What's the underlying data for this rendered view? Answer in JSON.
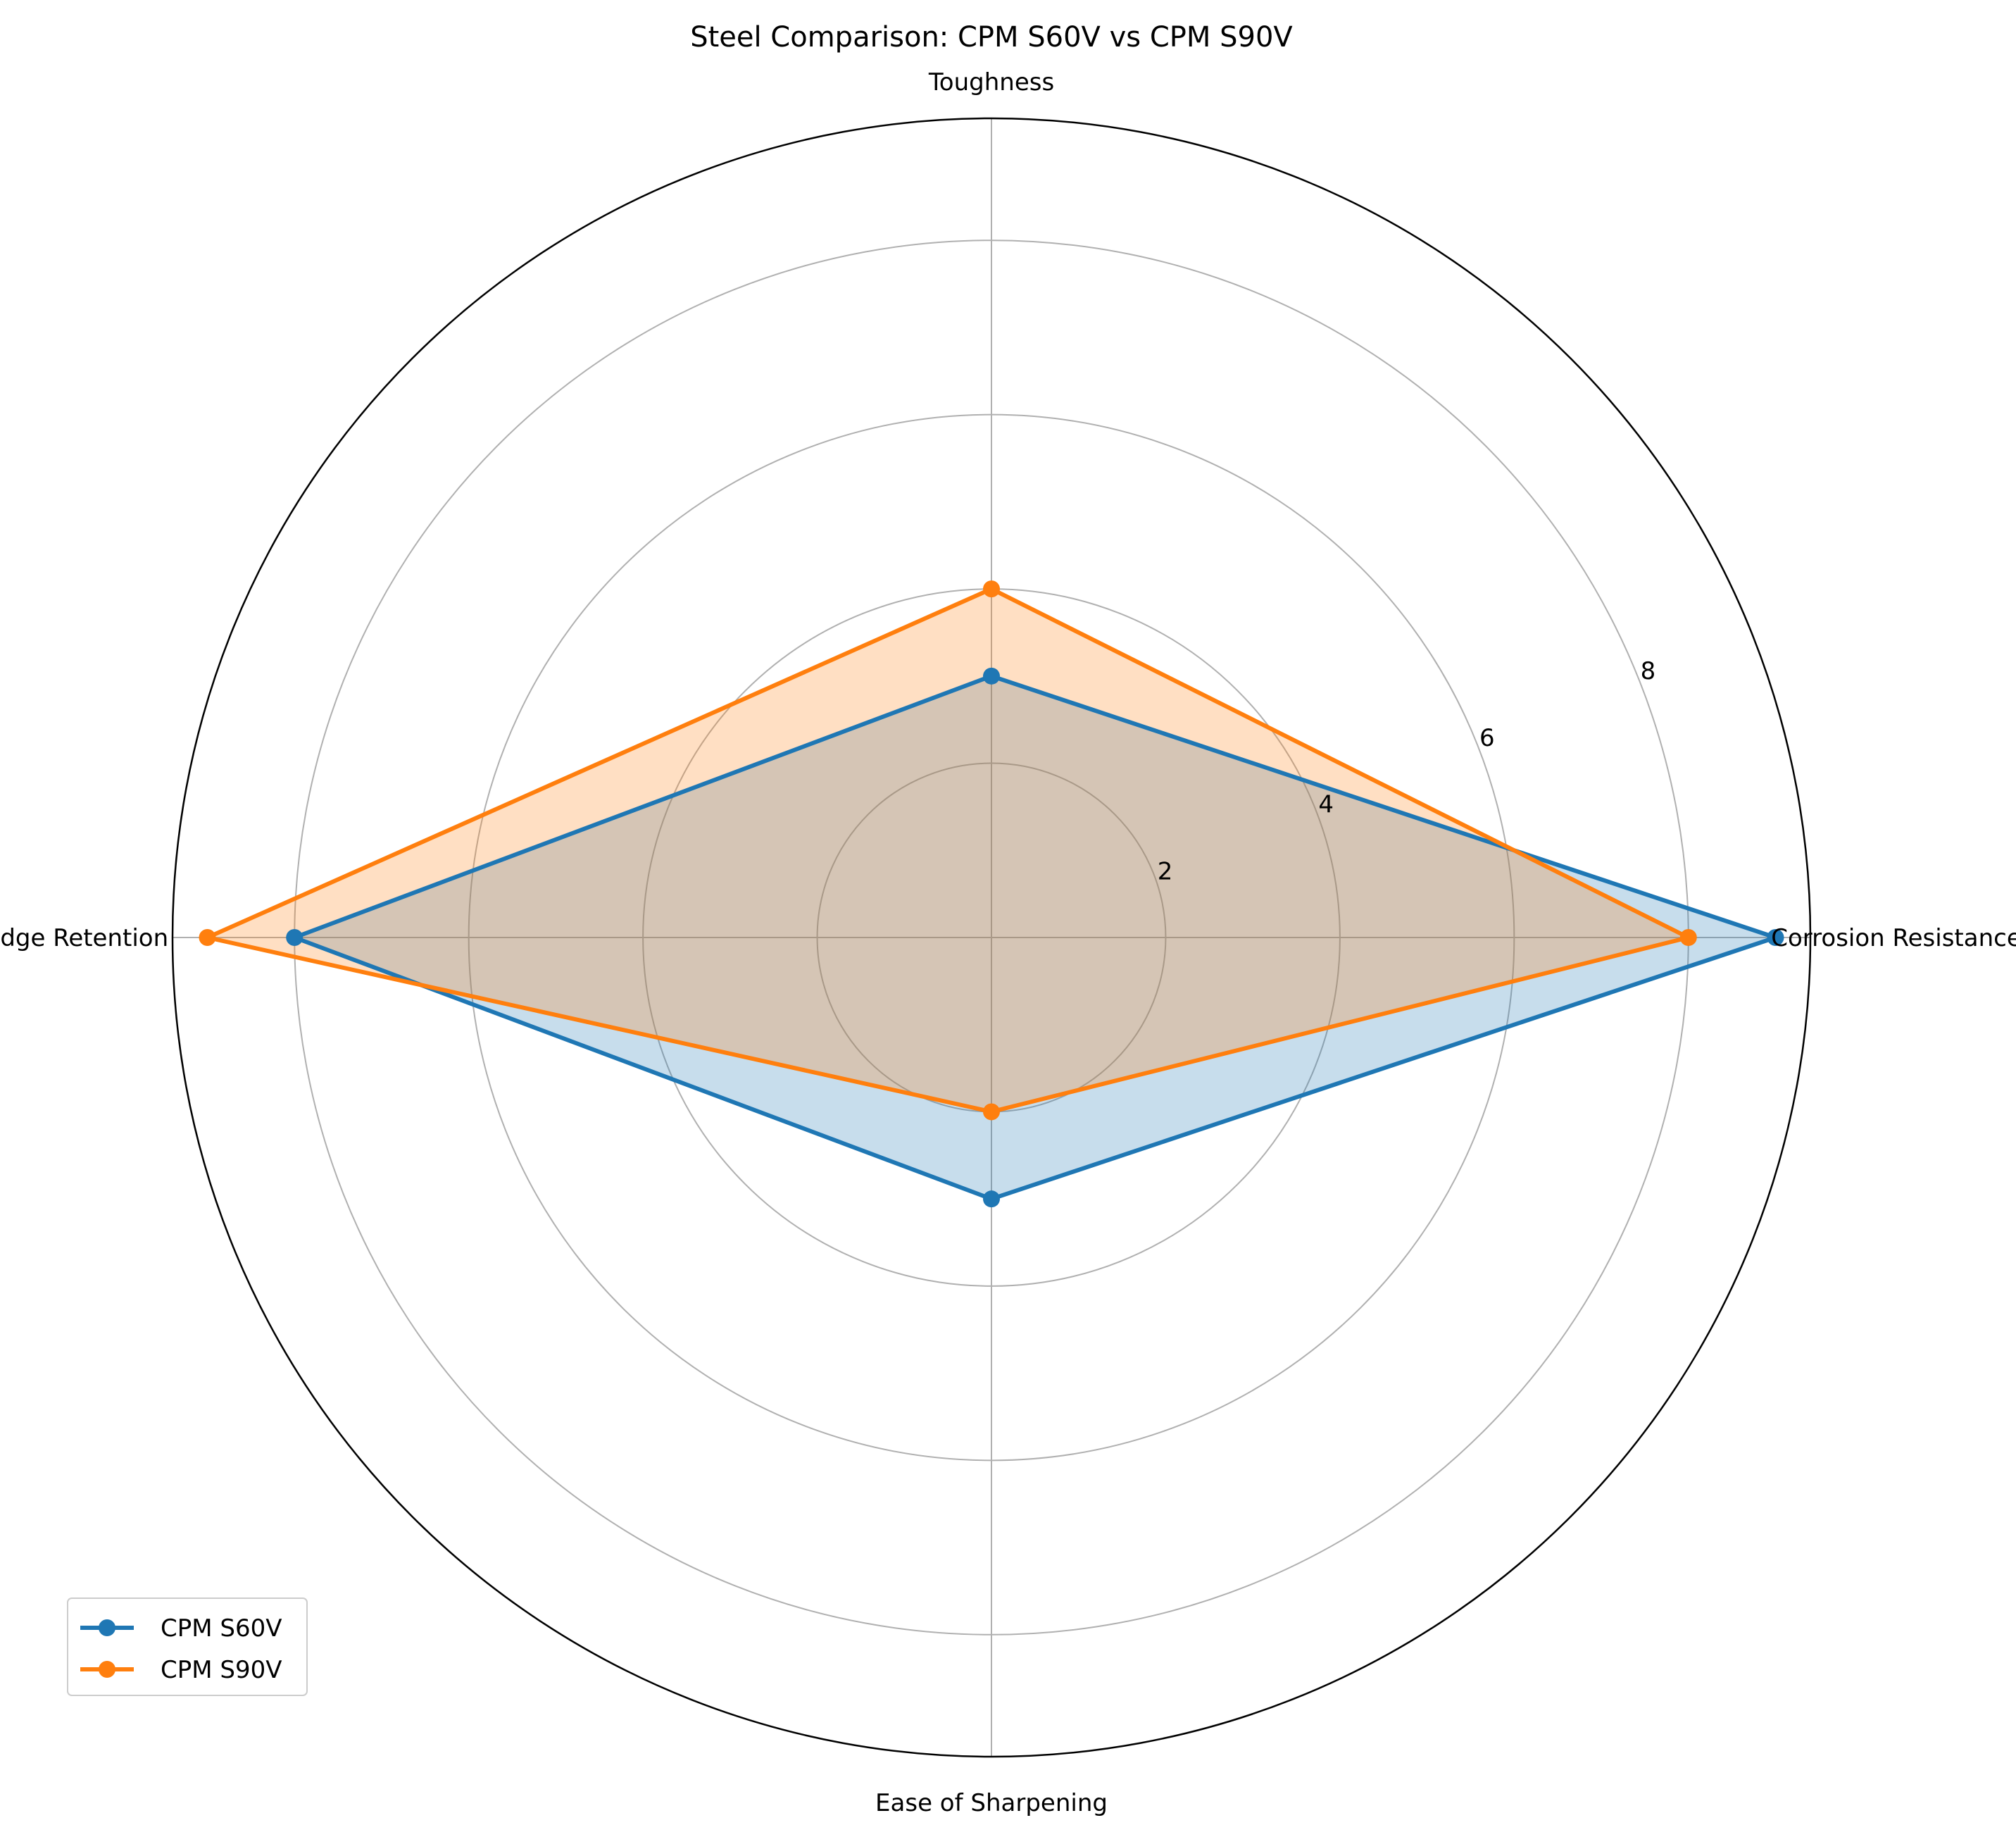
{
  "chart_data": {
    "type": "radar",
    "title": "Steel Comparison: CPM S60V vs CPM S90V",
    "categories": [
      "Corrosion Resistance",
      "Toughness",
      "Edge Retention",
      "Ease of Sharpening"
    ],
    "series": [
      {
        "name": "CPM S60V",
        "values": [
          9.0,
          3.0,
          8.0,
          3.0
        ],
        "color": "#1f77b4"
      },
      {
        "name": "CPM S90V",
        "values": [
          8.0,
          4.0,
          9.0,
          2.0
        ],
        "color": "#ff7f0e"
      }
    ],
    "rlim": [
      0,
      9.4
    ],
    "r_ticks": [
      2,
      4,
      6,
      8
    ],
    "r_tick_labels": [
      "2",
      "4",
      "6",
      "8"
    ],
    "grid": true,
    "legend_position": "lower-left"
  }
}
